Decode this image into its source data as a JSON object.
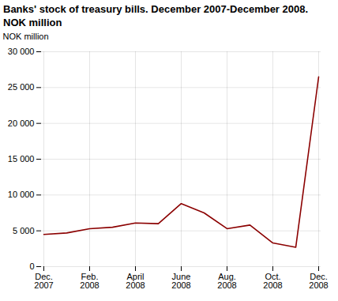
{
  "chart_data": {
    "type": "line",
    "title": "Banks' stock of treasury bills. December 2007-December 2008.",
    "subtitle": "NOK million",
    "ylabel": "NOK million",
    "categories": [
      "Dec.\n2007",
      null,
      "Feb.\n2008",
      null,
      "April\n2008",
      null,
      "June\n2008",
      null,
      "Aug.\n2008",
      null,
      "Oct.\n2008",
      null,
      "Dec.\n2008"
    ],
    "values": [
      4500,
      4700,
      5300,
      5500,
      6100,
      6000,
      8800,
      7500,
      5300,
      5800,
      3300,
      2700,
      26500
    ],
    "color": "#8B0000",
    "ylim": [
      0,
      30000
    ],
    "yticks": [
      0,
      {
        "value": 5000,
        "label": "5 000"
      },
      {
        "value": 10000,
        "label": "10 000"
      },
      {
        "value": 15000,
        "label": "15 000"
      },
      {
        "value": 20000,
        "label": "20 000"
      },
      {
        "value": 25000,
        "label": "25 000"
      },
      {
        "value": 30000,
        "label": "30 000"
      }
    ],
    "grid": true
  }
}
